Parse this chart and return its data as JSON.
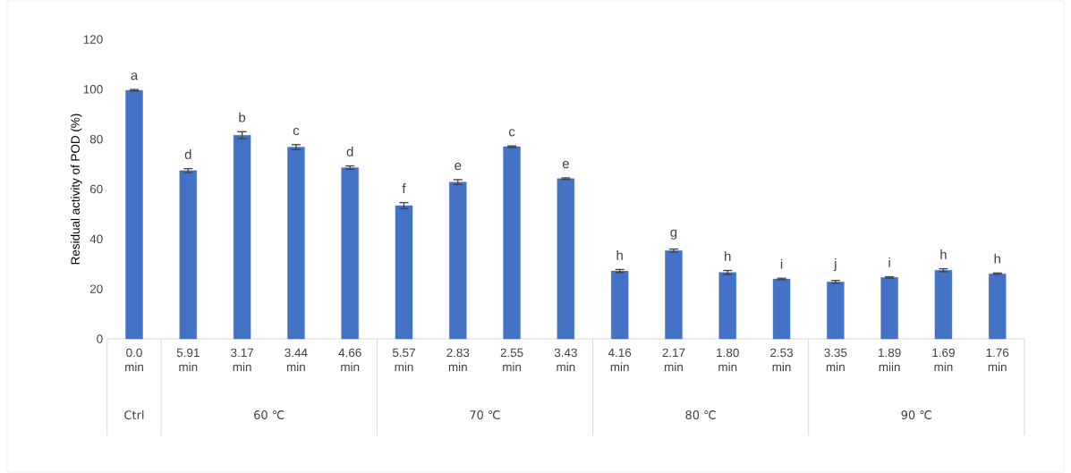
{
  "chart_data": {
    "type": "bar",
    "ylabel": "Residual activity of POD (%)",
    "categories": [
      "0.0 min",
      "5.91 min",
      "3.17 min",
      "3.44 min",
      "4.66 min",
      "5.57 min",
      "2.83 min",
      "2.55 min",
      "3.43 min",
      "4.16 min",
      "2.17 min",
      "1.80 min",
      "2.53 min",
      "3.35 min",
      "1.89 miin",
      "1.69 min",
      "1.76 min"
    ],
    "values": [
      99.6,
      67.4,
      81.6,
      76.8,
      68.6,
      53.4,
      62.8,
      77.0,
      64.2,
      27.2,
      35.4,
      26.6,
      24.0,
      22.8,
      24.6,
      27.5,
      26.1
    ],
    "errors": [
      0.3,
      0.8,
      1.4,
      1.0,
      0.7,
      1.2,
      1.0,
      0.3,
      0.3,
      0.6,
      0.6,
      0.8,
      0.3,
      0.6,
      0.3,
      0.6,
      0.3
    ],
    "value_labels": [
      "a",
      "d",
      "b",
      "c",
      "d",
      "f",
      "e",
      "c",
      "e",
      "h",
      "g",
      "h",
      "i",
      "j",
      "i",
      "h",
      "h"
    ],
    "annotations": [
      "Ctrl",
      "60 ℃",
      "70 ℃",
      "80 ℃",
      "90 ℃"
    ],
    "color": "#4472c4",
    "ylim": [
      0,
      120
    ],
    "yticks": [
      0,
      20,
      40,
      60,
      80,
      100,
      120
    ]
  }
}
